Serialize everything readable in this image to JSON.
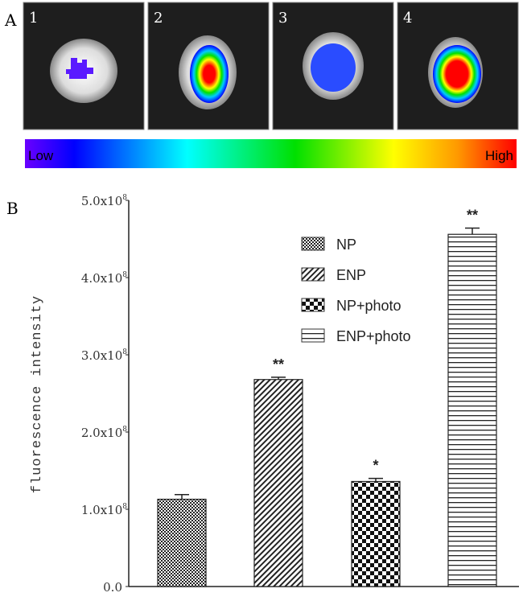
{
  "panel_a": {
    "label": "A",
    "images": [
      {
        "label": "1",
        "signal": "low"
      },
      {
        "label": "2",
        "signal": "high"
      },
      {
        "label": "3",
        "signal": "low-medium"
      },
      {
        "label": "4",
        "signal": "very high"
      }
    ],
    "colorbar": {
      "low_label": "Low",
      "high_label": "High"
    }
  },
  "panel_b": {
    "label": "B"
  },
  "chart_data": {
    "type": "bar",
    "title": "",
    "xlabel": "",
    "ylabel": "fluorescence intensity",
    "ylim": [
      0,
      500000000
    ],
    "yticks": [
      {
        "value": 0,
        "label": "0.0",
        "exp": ""
      },
      {
        "value": 100000000,
        "label": "1.0x10",
        "exp": "8"
      },
      {
        "value": 200000000,
        "label": "2.0x10",
        "exp": "8"
      },
      {
        "value": 300000000,
        "label": "3.0x10",
        "exp": "8"
      },
      {
        "value": 400000000,
        "label": "4.0x10",
        "exp": "8"
      },
      {
        "value": 500000000,
        "label": "5.0x10",
        "exp": "8"
      }
    ],
    "categories": [
      "NP",
      "ENP",
      "NP+photo",
      "ENP+photo"
    ],
    "values": [
      113000000,
      268000000,
      136000000,
      456000000
    ],
    "errors": [
      6000000,
      3000000,
      4000000,
      8000000
    ],
    "significance": [
      "",
      "**",
      "*",
      "**"
    ],
    "legend": {
      "placement": "top-right",
      "entries": [
        "NP",
        "ENP",
        "NP+photo",
        "ENP+photo"
      ]
    },
    "grid": false
  }
}
